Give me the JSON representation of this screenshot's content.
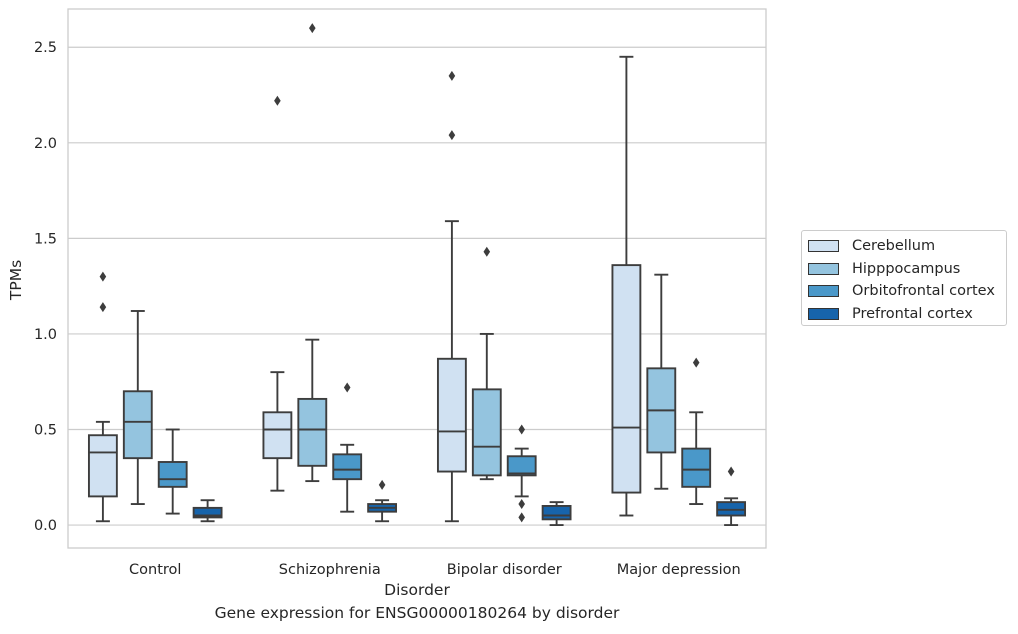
{
  "caption": "Gene expression for ENSG00000180264 by disorder",
  "chart_data": {
    "type": "boxplot",
    "xlabel": "Disorder",
    "ylabel": "TPMs",
    "ylim": [
      -0.12,
      2.7
    ],
    "yticks": [
      "0.0",
      "0.5",
      "1.0",
      "1.5",
      "2.0",
      "2.5"
    ],
    "ytick_values": [
      0.0,
      0.5,
      1.0,
      1.5,
      2.0,
      2.5
    ],
    "grid": "horizontal",
    "legend_position": "right",
    "categories": [
      "Control",
      "Schizophrenia",
      "Bipolar disorder",
      "Major depression"
    ],
    "series": [
      {
        "name": "Cerebellum",
        "color": "#d0e1f2",
        "boxes": [
          {
            "whislo": 0.02,
            "q1": 0.15,
            "med": 0.38,
            "q3": 0.47,
            "whishi": 0.54,
            "fliers": [
              1.14,
              1.3
            ]
          },
          {
            "whislo": 0.18,
            "q1": 0.35,
            "med": 0.5,
            "q3": 0.59,
            "whishi": 0.8,
            "fliers": [
              2.22
            ]
          },
          {
            "whislo": 0.02,
            "q1": 0.28,
            "med": 0.49,
            "q3": 0.87,
            "whishi": 1.59,
            "fliers": [
              2.04,
              2.35
            ]
          },
          {
            "whislo": 0.05,
            "q1": 0.17,
            "med": 0.51,
            "q3": 1.36,
            "whishi": 2.45,
            "fliers": []
          }
        ]
      },
      {
        "name": "Hipppocampus",
        "color": "#94c4df",
        "boxes": [
          {
            "whislo": 0.11,
            "q1": 0.35,
            "med": 0.54,
            "q3": 0.7,
            "whishi": 1.12,
            "fliers": []
          },
          {
            "whislo": 0.23,
            "q1": 0.31,
            "med": 0.5,
            "q3": 0.66,
            "whishi": 0.97,
            "fliers": [
              2.6
            ]
          },
          {
            "whislo": 0.24,
            "q1": 0.26,
            "med": 0.41,
            "q3": 0.71,
            "whishi": 1.0,
            "fliers": [
              1.43
            ]
          },
          {
            "whislo": 0.19,
            "q1": 0.38,
            "med": 0.6,
            "q3": 0.82,
            "whishi": 1.31,
            "fliers": []
          }
        ]
      },
      {
        "name": "Orbitofrontal cortex",
        "color": "#4a98c9",
        "boxes": [
          {
            "whislo": 0.06,
            "q1": 0.2,
            "med": 0.24,
            "q3": 0.33,
            "whishi": 0.5,
            "fliers": []
          },
          {
            "whislo": 0.07,
            "q1": 0.24,
            "med": 0.29,
            "q3": 0.37,
            "whishi": 0.42,
            "fliers": [
              0.72
            ]
          },
          {
            "whislo": 0.15,
            "q1": 0.26,
            "med": 0.27,
            "q3": 0.36,
            "whishi": 0.4,
            "fliers": [
              0.04,
              0.11,
              0.5
            ]
          },
          {
            "whislo": 0.11,
            "q1": 0.2,
            "med": 0.29,
            "q3": 0.4,
            "whishi": 0.59,
            "fliers": [
              0.85
            ]
          }
        ]
      },
      {
        "name": "Prefrontal cortex",
        "color": "#1764ab",
        "boxes": [
          {
            "whislo": 0.02,
            "q1": 0.04,
            "med": 0.05,
            "q3": 0.09,
            "whishi": 0.13,
            "fliers": []
          },
          {
            "whislo": 0.02,
            "q1": 0.07,
            "med": 0.09,
            "q3": 0.11,
            "whishi": 0.13,
            "fliers": [
              0.21
            ]
          },
          {
            "whislo": 0.0,
            "q1": 0.03,
            "med": 0.05,
            "q3": 0.1,
            "whishi": 0.12,
            "fliers": []
          },
          {
            "whislo": 0.0,
            "q1": 0.05,
            "med": 0.08,
            "q3": 0.12,
            "whishi": 0.14,
            "fliers": [
              0.28
            ]
          }
        ]
      }
    ]
  }
}
